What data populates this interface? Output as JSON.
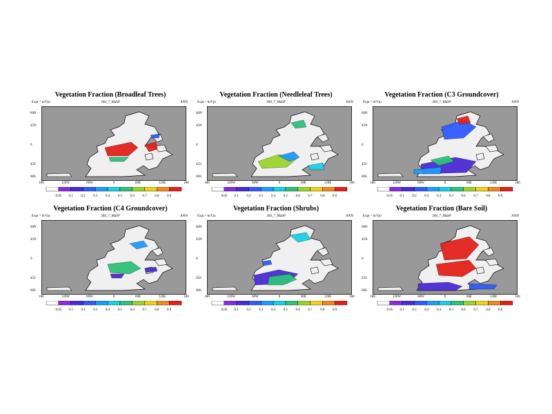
{
  "case_label": "26ll_7_MaSP",
  "expt_label": "Expt = tirVjo",
  "season_label": "ANN",
  "lat_labels": [
    "60N",
    "45N",
    "0",
    "45S",
    "60S"
  ],
  "lon_labels": [
    "180",
    "120W",
    "60W",
    "0",
    "60E",
    "120E",
    "180"
  ],
  "colorbar": {
    "labels": [
      "0.05",
      "0.1",
      "0.2",
      "0.3",
      "0.4",
      "0.5",
      "0.6",
      "0.7",
      "0.8",
      "0.9"
    ],
    "colors": [
      "#ffffff",
      "#8a2be2",
      "#4b2bd6",
      "#2f5cff",
      "#1e9bff",
      "#17d2e6",
      "#2ec27a",
      "#9bd42b",
      "#f0d21e",
      "#f08a1e",
      "#e3221b"
    ]
  },
  "colors": {
    "ocean": "#999999",
    "land": "#f0f0f0",
    "coast": "#000000"
  },
  "panels": [
    {
      "title": "Vegetation Fraction (Broadleaf Trees)"
    },
    {
      "title": "Vegetation Fraction (Needleleaf Trees)"
    },
    {
      "title": "Vegetation Fraction (C3 Groundcover)"
    },
    {
      "title": "Vegetation Fraction (C4 Groundcover)"
    },
    {
      "title": "Vegetation Fraction (Shrubs)"
    },
    {
      "title": "Vegetation Fraction (Bare Soil)"
    }
  ]
}
